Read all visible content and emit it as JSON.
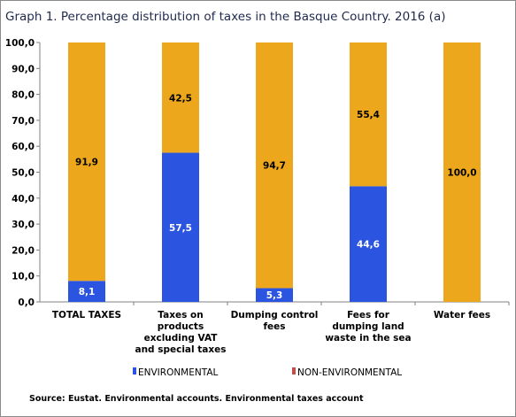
{
  "chart_data": {
    "type": "bar",
    "stacked": true,
    "title": "Graph 1. Percentage distribution of taxes in the Basque Country. 2016 (a)",
    "xlabel": "",
    "ylabel": "",
    "ylim": [
      0,
      100
    ],
    "yticks": [
      "0,0",
      "10,0",
      "20,0",
      "30,0",
      "40,0",
      "50,0",
      "60,0",
      "70,0",
      "80,0",
      "90,0",
      "100,0"
    ],
    "categories": [
      [
        "TOTAL TAXES"
      ],
      [
        "Taxes on",
        "products",
        "excluding VAT",
        "and special taxes"
      ],
      [
        "Dumping control",
        "fees"
      ],
      [
        "Fees for",
        "dumping land",
        "waste in the sea"
      ],
      [
        "Water fees"
      ]
    ],
    "series": [
      {
        "name": "ENVIRONMENTAL",
        "color": "#2b55e0",
        "label_color": "#ffffff",
        "values": [
          8.1,
          57.5,
          5.3,
          44.6,
          0
        ],
        "labels": [
          "8,1",
          "57,5",
          "5,3",
          "44,6",
          ""
        ]
      },
      {
        "name": "NON-ENVIRONMENTAL",
        "color": "#eca71c",
        "label_color": "#000000",
        "values": [
          91.9,
          42.5,
          94.7,
          55.4,
          100
        ],
        "labels": [
          "91,9",
          "42,5",
          "94,7",
          "55,4",
          "100,0"
        ]
      }
    ],
    "legend_position": "bottom",
    "legend_marker_colors": [
      "#2b55e0",
      "#c0504d"
    ],
    "grid": false,
    "source": "Source: Eustat. Environmental accounts. Environmental taxes account"
  }
}
